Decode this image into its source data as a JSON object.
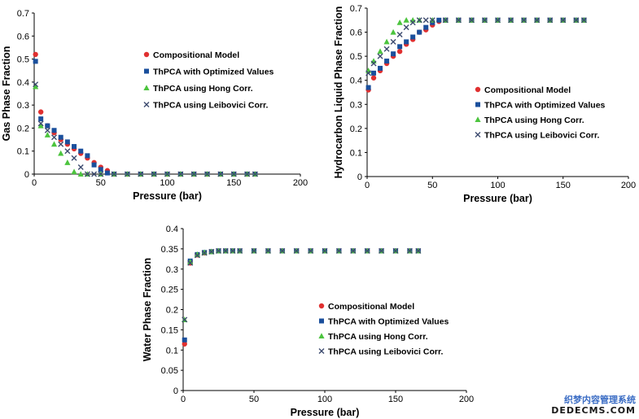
{
  "chart_data": [
    {
      "type": "scatter",
      "title": "",
      "xlabel": "Pressure (bar)",
      "ylabel": "Gas Phase Fraction",
      "xlim": [
        0,
        200
      ],
      "ylim": [
        0,
        0.7
      ],
      "x_ticks": [
        "0",
        "50",
        "100",
        "150",
        "200"
      ],
      "y_ticks": [
        "0",
        "0.1",
        "0.2",
        "0.3",
        "0.4",
        "0.5",
        "0.6",
        "0.7"
      ],
      "legend_position": "right",
      "series": [
        {
          "name": "Compositional Model",
          "color": "#e03030",
          "marker": "circle",
          "x": [
            1,
            5,
            10,
            15,
            20,
            25,
            30,
            35,
            40,
            45,
            50,
            55,
            60,
            70,
            80,
            90,
            100,
            110,
            120,
            130,
            140,
            150,
            160,
            166
          ],
          "y": [
            0.52,
            0.27,
            0.21,
            0.18,
            0.15,
            0.13,
            0.11,
            0.09,
            0.07,
            0.05,
            0.03,
            0.015,
            0,
            0,
            0,
            0,
            0,
            0,
            0,
            0,
            0,
            0,
            0,
            0
          ]
        },
        {
          "name": "ThPCA with Optimized Values",
          "color": "#1a4f9c",
          "marker": "square",
          "x": [
            1,
            5,
            10,
            15,
            20,
            25,
            30,
            35,
            40,
            45,
            50,
            55,
            60,
            70,
            80,
            90,
            100,
            110,
            120,
            130,
            140,
            150,
            160,
            166
          ],
          "y": [
            0.49,
            0.24,
            0.21,
            0.19,
            0.16,
            0.14,
            0.12,
            0.1,
            0.08,
            0.04,
            0.02,
            0.005,
            0,
            0,
            0,
            0,
            0,
            0,
            0,
            0,
            0,
            0,
            0,
            0
          ]
        },
        {
          "name": "ThPCA using Hong Corr.",
          "color": "#4cc43e",
          "marker": "triangle",
          "x": [
            1,
            5,
            10,
            15,
            20,
            25,
            30,
            35,
            40,
            50,
            60,
            70,
            80,
            90,
            100,
            110,
            120,
            130,
            140,
            150,
            160,
            166
          ],
          "y": [
            0.38,
            0.21,
            0.17,
            0.13,
            0.09,
            0.05,
            0.01,
            0,
            0,
            0,
            0,
            0,
            0,
            0,
            0,
            0,
            0,
            0,
            0,
            0,
            0,
            0
          ]
        },
        {
          "name": "ThPCA using Leibovici Corr.",
          "color": "#3c4a6e",
          "marker": "x",
          "x": [
            1,
            5,
            10,
            15,
            20,
            25,
            30,
            35,
            40,
            45,
            50,
            60,
            70,
            80,
            90,
            100,
            110,
            120,
            130,
            140,
            150,
            160,
            166
          ],
          "y": [
            0.39,
            0.22,
            0.19,
            0.16,
            0.13,
            0.1,
            0.07,
            0.03,
            0,
            0,
            0,
            0,
            0,
            0,
            0,
            0,
            0,
            0,
            0,
            0,
            0,
            0,
            0
          ]
        }
      ]
    },
    {
      "type": "scatter",
      "title": "",
      "xlabel": "Pressure (bar)",
      "ylabel": "Hydrocarbon Liquid Phase Fraction",
      "xlim": [
        0,
        200
      ],
      "ylim": [
        0,
        0.7
      ],
      "x_ticks": [
        "0",
        "50",
        "100",
        "150",
        "200"
      ],
      "y_ticks": [
        "0",
        "0.1",
        "0.2",
        "0.3",
        "0.4",
        "0.5",
        "0.6",
        "0.7"
      ],
      "legend_position": "right",
      "series": [
        {
          "name": "Compositional Model",
          "color": "#e03030",
          "marker": "circle",
          "x": [
            1,
            5,
            10,
            15,
            20,
            25,
            30,
            35,
            40,
            45,
            50,
            55,
            60,
            70,
            80,
            90,
            100,
            110,
            120,
            130,
            140,
            150,
            160,
            166
          ],
          "y": [
            0.36,
            0.41,
            0.44,
            0.47,
            0.5,
            0.52,
            0.55,
            0.57,
            0.6,
            0.61,
            0.63,
            0.645,
            0.65,
            0.65,
            0.65,
            0.65,
            0.65,
            0.65,
            0.65,
            0.65,
            0.65,
            0.65,
            0.65,
            0.65
          ]
        },
        {
          "name": "ThPCA with Optimized Values",
          "color": "#1a4f9c",
          "marker": "square",
          "x": [
            1,
            5,
            10,
            15,
            20,
            25,
            30,
            35,
            40,
            45,
            50,
            55,
            60,
            70,
            80,
            90,
            100,
            110,
            120,
            130,
            140,
            150,
            160,
            166
          ],
          "y": [
            0.37,
            0.43,
            0.45,
            0.48,
            0.51,
            0.54,
            0.56,
            0.58,
            0.6,
            0.62,
            0.64,
            0.65,
            0.65,
            0.65,
            0.65,
            0.65,
            0.65,
            0.65,
            0.65,
            0.65,
            0.65,
            0.65,
            0.65,
            0.65
          ]
        },
        {
          "name": "ThPCA using Hong Corr.",
          "color": "#4cc43e",
          "marker": "triangle",
          "x": [
            1,
            5,
            10,
            15,
            20,
            25,
            30,
            35,
            40,
            50,
            60,
            70,
            80,
            90,
            100,
            110,
            120,
            130,
            140,
            150,
            160,
            166
          ],
          "y": [
            0.44,
            0.48,
            0.52,
            0.56,
            0.6,
            0.64,
            0.65,
            0.65,
            0.65,
            0.65,
            0.65,
            0.65,
            0.65,
            0.65,
            0.65,
            0.65,
            0.65,
            0.65,
            0.65,
            0.65,
            0.65,
            0.65
          ]
        },
        {
          "name": "ThPCA using Leibovici Corr.",
          "color": "#3c4a6e",
          "marker": "x",
          "x": [
            1,
            5,
            10,
            15,
            20,
            25,
            30,
            35,
            40,
            45,
            50,
            60,
            70,
            80,
            90,
            100,
            110,
            120,
            130,
            140,
            150,
            160,
            166
          ],
          "y": [
            0.43,
            0.47,
            0.5,
            0.53,
            0.56,
            0.59,
            0.62,
            0.64,
            0.65,
            0.65,
            0.65,
            0.65,
            0.65,
            0.65,
            0.65,
            0.65,
            0.65,
            0.65,
            0.65,
            0.65,
            0.65,
            0.65,
            0.65
          ]
        }
      ]
    },
    {
      "type": "scatter",
      "title": "",
      "xlabel": "Pressure (bar)",
      "ylabel": "Water Phase Fraction",
      "xlim": [
        0,
        200
      ],
      "ylim": [
        0,
        0.4
      ],
      "x_ticks": [
        "0",
        "50",
        "100",
        "150",
        "200"
      ],
      "y_ticks": [
        "0",
        "0.05",
        "0.1",
        "0.15",
        "0.2",
        "0.25",
        "0.3",
        "0.35",
        "0.4"
      ],
      "legend_position": "center",
      "series": [
        {
          "name": "Compositional Model",
          "color": "#e03030",
          "marker": "circle",
          "x": [
            1,
            5,
            10,
            15,
            20,
            25,
            30,
            35,
            40,
            50,
            60,
            70,
            80,
            90,
            100,
            110,
            120,
            130,
            140,
            150,
            160,
            166
          ],
          "y": [
            0.115,
            0.315,
            0.335,
            0.34,
            0.343,
            0.345,
            0.345,
            0.345,
            0.345,
            0.345,
            0.345,
            0.345,
            0.345,
            0.345,
            0.345,
            0.345,
            0.345,
            0.345,
            0.345,
            0.345,
            0.345,
            0.345
          ]
        },
        {
          "name": "ThPCA with Optimized Values",
          "color": "#1a4f9c",
          "marker": "square",
          "x": [
            1,
            5,
            10,
            15,
            20,
            25,
            30,
            35,
            40,
            50,
            60,
            70,
            80,
            90,
            100,
            110,
            120,
            130,
            140,
            150,
            160,
            166
          ],
          "y": [
            0.125,
            0.32,
            0.336,
            0.341,
            0.343,
            0.345,
            0.345,
            0.345,
            0.345,
            0.345,
            0.345,
            0.345,
            0.345,
            0.345,
            0.345,
            0.345,
            0.345,
            0.345,
            0.345,
            0.345,
            0.345,
            0.345
          ]
        },
        {
          "name": "ThPCA using Hong Corr.",
          "color": "#4cc43e",
          "marker": "triangle",
          "x": [
            1,
            5,
            10,
            15,
            20,
            25,
            30,
            35,
            40,
            50,
            60,
            70,
            80,
            90,
            100,
            110,
            120,
            130,
            140,
            150,
            160,
            166
          ],
          "y": [
            0.175,
            0.318,
            0.336,
            0.341,
            0.343,
            0.345,
            0.345,
            0.345,
            0.345,
            0.345,
            0.345,
            0.345,
            0.345,
            0.345,
            0.345,
            0.345,
            0.345,
            0.345,
            0.345,
            0.345,
            0.345,
            0.345
          ]
        },
        {
          "name": "ThPCA using Leibovici Corr.",
          "color": "#3c4a6e",
          "marker": "x",
          "x": [
            1,
            5,
            10,
            15,
            20,
            25,
            30,
            35,
            40,
            50,
            60,
            70,
            80,
            90,
            100,
            110,
            120,
            130,
            140,
            150,
            160,
            166
          ],
          "y": [
            0.175,
            0.315,
            0.334,
            0.34,
            0.343,
            0.345,
            0.345,
            0.345,
            0.345,
            0.345,
            0.345,
            0.345,
            0.345,
            0.345,
            0.345,
            0.345,
            0.345,
            0.345,
            0.345,
            0.345,
            0.345,
            0.345
          ]
        }
      ]
    }
  ],
  "watermark": {
    "line1": "织梦内容管理系统",
    "line2": "DEDECMS.COM",
    "color1": "#3a6cc4",
    "color2": "#1a1a1a"
  }
}
